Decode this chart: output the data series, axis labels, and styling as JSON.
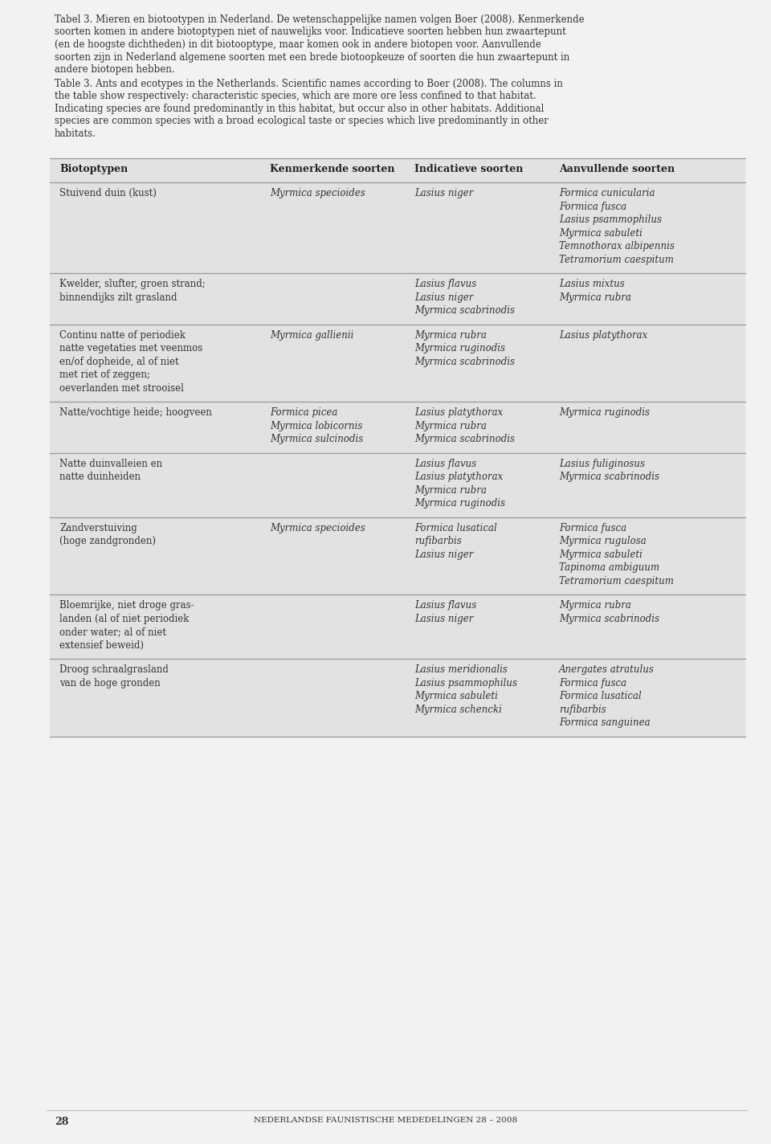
{
  "page_bg": "#f2f2f2",
  "table_bg": "#e2e2e2",
  "text_color": "#333333",
  "header_color": "#222222",
  "line_color": "#999999",
  "intro_text_nl": "Tabel 3. Mieren en biotootypen in Nederland. De wetenschappelijke namen volgen Boer (2008). Kenmerkende soorten komen in andere biotoptypen niet of nauwelijks voor. Indicatieve soorten hebben hun zwaartepunt (en de hoogste dichtheden) in dit biotooptype, maar komen ook in andere biotopen voor. Aanvullende soorten zijn in Nederland algemene soorten met een brede biotoopkeuze of soorten die hun zwaartepunt in andere biotopen hebben.",
  "intro_text_en": "Table 3. Ants and ecotypes in the Netherlands. Scientific names according to Boer (2008). The columns in the table show respectively: characteristic species, which are more ore less confined to that habitat. Indicating species are found predominantly in this habitat, but occur also in other habitats. Additional species are common species with a broad ecological taste or species which live predominantly in other habitats.",
  "col_headers": [
    "Biotoptypen",
    "Kenmerkende soorten",
    "Indicatieve soorten",
    "Aanvullende soorten"
  ],
  "rows": [
    {
      "biotoop": [
        "Stuivend duin (kust)"
      ],
      "kenmerkend": [
        "Myrmica specioides"
      ],
      "indicatief": [
        "Lasius niger"
      ],
      "aanvullend": [
        "Formica cunicularia",
        "Formica fusca",
        "Lasius psammophilus",
        "Myrmica sabuleti",
        "Temnothorax albipennis",
        "Tetramorium caespitum"
      ]
    },
    {
      "biotoop": [
        "Kwelder, slufter, groen strand;",
        "binnendijks zilt grasland"
      ],
      "kenmerkend": [],
      "indicatief": [
        "Lasius flavus",
        "Lasius niger",
        "Myrmica scabrinodis"
      ],
      "aanvullend": [
        "Lasius mixtus",
        "Myrmica rubra"
      ]
    },
    {
      "biotoop": [
        "Continu natte of periodiek",
        "natte vegetaties met veenmos",
        "en/of dopheide, al of niet",
        "met riet of zeggen;",
        "oeverlanden met strooisel"
      ],
      "kenmerkend": [
        "Myrmica gallienii"
      ],
      "indicatief": [
        "Myrmica rubra",
        "Myrmica ruginodis",
        "Myrmica scabrinodis"
      ],
      "aanvullend": [
        "Lasius platythorax"
      ]
    },
    {
      "biotoop": [
        "Natte/vochtige heide; hoogveen"
      ],
      "kenmerkend": [
        "Formica picea",
        "Myrmica lobicornis",
        "Myrmica sulcinodis"
      ],
      "indicatief": [
        "Lasius platythorax",
        "Myrmica rubra",
        "Myrmica scabrinodis"
      ],
      "aanvullend": [
        "Myrmica ruginodis"
      ]
    },
    {
      "biotoop": [
        "Natte duinvalleien en",
        "natte duinheiden"
      ],
      "kenmerkend": [],
      "indicatief": [
        "Lasius flavus",
        "Lasius platythorax",
        "Myrmica rubra",
        "Myrmica ruginodis"
      ],
      "aanvullend": [
        "Lasius fuliginosus",
        "Myrmica scabrinodis"
      ]
    },
    {
      "biotoop": [
        "Zandverstuiving",
        "(hoge zandgronden)"
      ],
      "kenmerkend": [
        "Myrmica specioides"
      ],
      "indicatief": [
        "Formica lusatical",
        "rufibarbis",
        "Lasius niger"
      ],
      "aanvullend": [
        "Formica fusca",
        "Myrmica rugulosa",
        "Myrmica sabuleti",
        "Tapinoma ambiguum",
        "Tetramorium caespitum"
      ]
    },
    {
      "biotoop": [
        "Bloemrijke, niet droge gras-",
        "landen (al of niet periodiek",
        "onder water; al of niet",
        "extensief beweid)"
      ],
      "kenmerkend": [],
      "indicatief": [
        "Lasius flavus",
        "Lasius niger"
      ],
      "aanvullend": [
        "Myrmica rubra",
        "Myrmica scabrinodis"
      ]
    },
    {
      "biotoop": [
        "Droog schraalgrasland",
        "van de hoge gronden"
      ],
      "kenmerkend": [],
      "indicatief": [
        "Lasius meridionalis",
        "Lasius psammophilus",
        "Myrmica sabuleti",
        "Myrmica schencki"
      ],
      "aanvullend": [
        "Anergates atratulus",
        "Formica fusca",
        "Formica lusatical",
        "rufibarbis",
        "Formica sanguinea"
      ]
    }
  ],
  "footer_text": "nederlandse faunistische mededelingen 28 – 2008",
  "page_number": "28",
  "font_size_intro": 8.5,
  "font_size_header": 9.0,
  "font_size_cell": 8.5,
  "font_size_footer": 7.5
}
